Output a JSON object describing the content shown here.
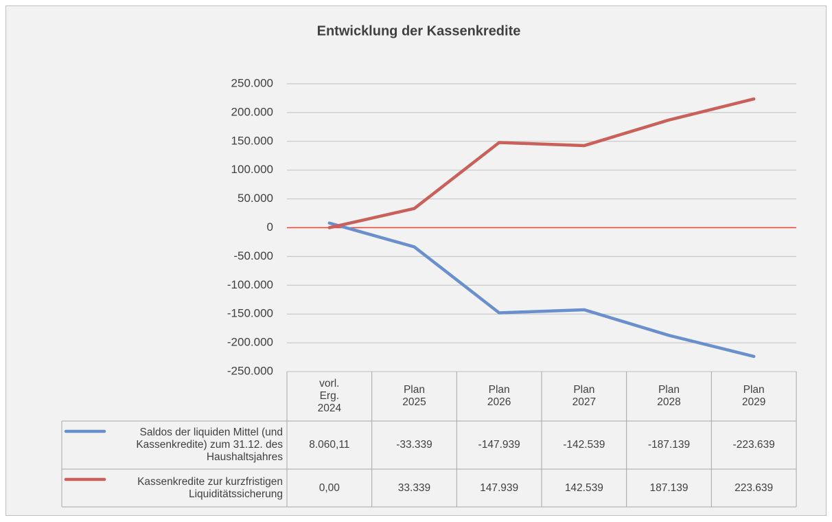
{
  "chart_data": {
    "type": "line",
    "title": "Entwicklung der Kassenkredite",
    "categories": [
      "vorl. Erg. 2024",
      "Plan 2025",
      "Plan 2026",
      "Plan 2027",
      "Plan 2028",
      "Plan 2029"
    ],
    "series": [
      {
        "name": "Saldos der liquiden Mittel (und Kassenkredite) zum 31.12. des Haushaltsjahres",
        "color": "#6a8fcd",
        "values": [
          8060.11,
          -33339,
          -147939,
          -142539,
          -187139,
          -223639
        ],
        "value_labels": [
          "8.060,11",
          "-33.339",
          "-147.939",
          "-142.539",
          "-187.139",
          "-223.639"
        ]
      },
      {
        "name": "Kassenkredite zur kurzfristigen Liquiditätssicherung",
        "color": "#c9605a",
        "values": [
          0,
          33339,
          147939,
          142539,
          187139,
          223639
        ],
        "value_labels": [
          "0,00",
          "33.339",
          "147.939",
          "142.539",
          "187.139",
          "223.639"
        ]
      }
    ],
    "ylim": [
      -250000,
      250000
    ],
    "yticks": [
      {
        "value": -250000,
        "label": "-250.000"
      },
      {
        "value": -200000,
        "label": "-200.000"
      },
      {
        "value": -150000,
        "label": "-150.000"
      },
      {
        "value": -100000,
        "label": "-100.000"
      },
      {
        "value": -50000,
        "label": "-50.000"
      },
      0,
      {
        "value": 50000,
        "label": "50.000"
      },
      {
        "value": 100000,
        "label": "100.000"
      },
      {
        "value": 150000,
        "label": "150.000"
      },
      {
        "value": 200000,
        "label": "200.000"
      },
      {
        "value": 250000,
        "label": "250.000"
      }
    ],
    "grid": true,
    "zero_line_color": "#ff3b2f"
  }
}
